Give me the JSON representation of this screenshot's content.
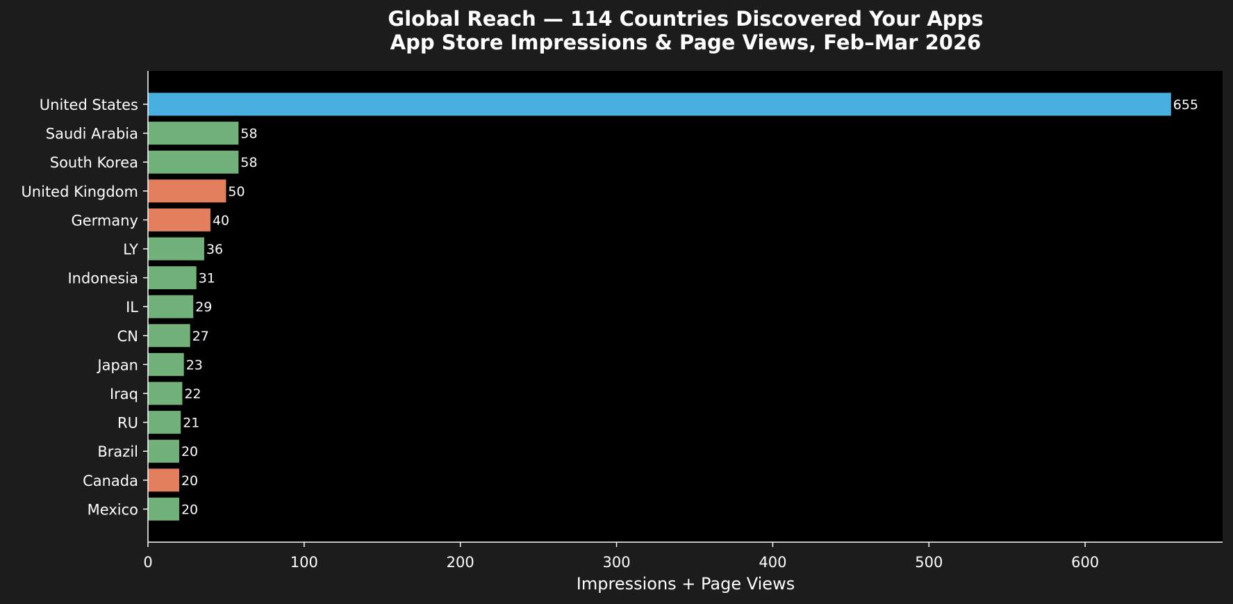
{
  "chart_data": {
    "type": "bar",
    "orientation": "horizontal",
    "title": "Global Reach — 114 Countries Discovered Your Apps",
    "subtitle": "App Store Impressions & Page Views, Feb–Mar 2026",
    "xlabel": "Impressions + Page Views",
    "ylabel": "",
    "xlim": [
      0,
      688
    ],
    "xticks": [
      0,
      100,
      200,
      300,
      400,
      500,
      600
    ],
    "grid": false,
    "categories": [
      "United States",
      "Saudi Arabia",
      "South Korea",
      "United Kingdom",
      "Germany",
      "LY",
      "Indonesia",
      "IL",
      "CN",
      "Japan",
      "Iraq",
      "RU",
      "Brazil",
      "Canada",
      "Mexico"
    ],
    "values": [
      655,
      58,
      58,
      50,
      40,
      36,
      31,
      29,
      27,
      23,
      22,
      21,
      20,
      20,
      20
    ],
    "bar_colors": [
      "#48b0e0",
      "#72b27a",
      "#72b27a",
      "#e47f5e",
      "#e47f5e",
      "#72b27a",
      "#72b27a",
      "#72b27a",
      "#72b27a",
      "#72b27a",
      "#72b27a",
      "#72b27a",
      "#72b27a",
      "#e47f5e",
      "#72b27a"
    ],
    "colors": {
      "background": "#1c1c1c",
      "plot_background": "#000000",
      "text": "#ffffff",
      "axis": "#ffffff"
    }
  }
}
